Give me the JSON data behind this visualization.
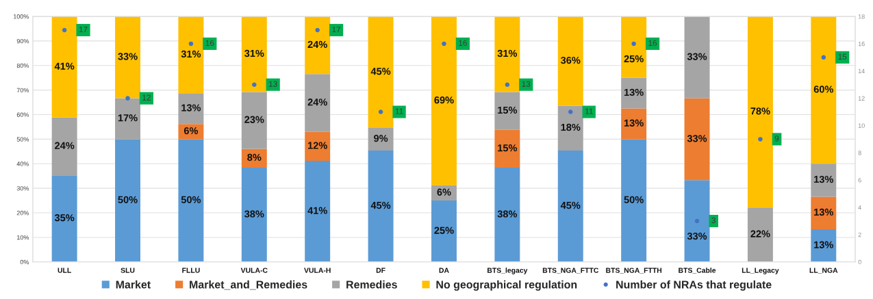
{
  "chart_data": {
    "type": "bar",
    "stacked": true,
    "categories": [
      "ULL",
      "SLU",
      "FLLU",
      "VULA-C",
      "VULA-H",
      "DF",
      "DA",
      "BTS_legacy",
      "BTS_NGA_FTTC",
      "BTS_NGA_FTTH",
      "BTS_Cable",
      "LL_Legacy",
      "LL_NGA"
    ],
    "series": [
      {
        "name": "Market",
        "color": "#5b9bd5",
        "values": [
          35.3,
          50.0,
          50.0,
          38.4,
          41.2,
          45.4,
          25.0,
          38.4,
          45.4,
          50.0,
          33.3,
          null,
          13.3
        ],
        "value_labels": [
          "35%",
          "50%",
          "50%",
          "38%",
          "41%",
          "45%",
          "25%",
          "38%",
          "45%",
          "50%",
          "33%",
          null,
          "13%"
        ]
      },
      {
        "name": "Market_and_Remedies",
        "color": "#ed7d31",
        "values": [
          null,
          null,
          6.2,
          7.7,
          11.8,
          null,
          null,
          15.4,
          null,
          12.5,
          33.3,
          null,
          13.3
        ],
        "value_labels": [
          null,
          null,
          "6%",
          "8%",
          "12%",
          null,
          null,
          "15%",
          null,
          "13%",
          "33%",
          null,
          "13%"
        ]
      },
      {
        "name": "Remedies",
        "color": "#a5a5a5",
        "values": [
          23.5,
          16.7,
          12.5,
          23.1,
          23.5,
          9.2,
          6.2,
          15.4,
          18.2,
          12.5,
          33.4,
          22.2,
          13.4
        ],
        "value_labels": [
          "24%",
          "17%",
          "13%",
          "23%",
          "24%",
          "9%",
          "6%",
          "15%",
          "18%",
          "13%",
          "33%",
          "22%",
          "13%"
        ]
      },
      {
        "name": "No geographical regulation",
        "color": "#ffc000",
        "values": [
          41.2,
          33.3,
          31.3,
          30.8,
          23.5,
          45.4,
          68.8,
          30.8,
          36.4,
          25.0,
          null,
          77.8,
          60.0
        ],
        "value_labels": [
          "41%",
          "33%",
          "31%",
          "31%",
          "24%",
          "45%",
          "69%",
          "31%",
          "36%",
          "25%",
          null,
          "78%",
          "60%"
        ]
      },
      {
        "name": "Number of NRAs that regulate",
        "type": "scatter",
        "axis": "y2",
        "marker": "circle",
        "color": "#4472c4",
        "x": [
          "ULL",
          "SLU",
          "FLLU",
          "VULA-C",
          "VULA-H",
          "DF",
          "DA",
          "BTS_legacy",
          "BTS_NGA_FTTC",
          "BTS_NGA_FTTH",
          "BTS_Cable",
          "LL_Legacy",
          "LL_NGA"
        ],
        "values": [
          17,
          12,
          16,
          13,
          17,
          11,
          16,
          13,
          11,
          16,
          3,
          9,
          15
        ],
        "value_labels": [
          "17",
          "12",
          "16",
          "13",
          "17",
          "11",
          "16",
          "13",
          "11",
          "16",
          "3",
          "9",
          "15"
        ]
      }
    ],
    "ylim": [
      0,
      100
    ],
    "yticks": [
      {
        "value": 0,
        "label": "0%"
      },
      {
        "value": 10,
        "label": "10%"
      },
      {
        "value": 20,
        "label": "20%"
      },
      {
        "value": 30,
        "label": "30%"
      },
      {
        "value": 40,
        "label": "40%"
      },
      {
        "value": 50,
        "label": "50%"
      },
      {
        "value": 60,
        "label": "60%"
      },
      {
        "value": 70,
        "label": "70%"
      },
      {
        "value": 80,
        "label": "80%"
      },
      {
        "value": 90,
        "label": "90%"
      },
      {
        "value": 100,
        "label": "100%"
      }
    ],
    "y2lim": [
      0,
      18
    ],
    "y2ticks": [
      0,
      2,
      4,
      6,
      8,
      10,
      12,
      14,
      16,
      18
    ],
    "grid": "y",
    "legend": "bottom"
  }
}
